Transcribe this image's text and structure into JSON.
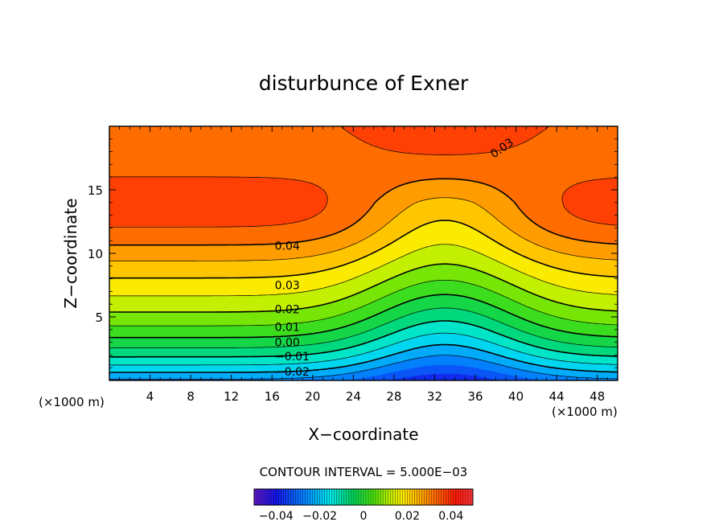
{
  "chart_data": {
    "type": "contour",
    "title": "disturbunce of Exner",
    "xlabel": "X−coordinate",
    "ylabel": "Z−coordinate",
    "x_unit": "(×1000 m)",
    "x_unit_right": "(×1000 m)",
    "xlim": [
      0,
      50
    ],
    "ylim": [
      0,
      20
    ],
    "x_ticks": [
      4,
      8,
      12,
      16,
      20,
      24,
      28,
      32,
      36,
      40,
      44,
      48
    ],
    "y_ticks": [
      5,
      10,
      15
    ],
    "contour_interval_label": "CONTOUR INTERVAL = 5.000E−03",
    "contour_interval": 0.005,
    "contour_labels": [
      {
        "text": "0.04",
        "x": 17.5,
        "y": 10.6
      },
      {
        "text": "0.03",
        "x": 17.5,
        "y": 7.5
      },
      {
        "text": "0.02",
        "x": 17.5,
        "y": 5.6
      },
      {
        "text": "0.01",
        "x": 17.5,
        "y": 4.2
      },
      {
        "text": "0.00",
        "x": 17.5,
        "y": 3.0
      },
      {
        "text": "−0.01",
        "x": 18.0,
        "y": 1.9
      },
      {
        "text": "−0.02",
        "x": 18.0,
        "y": 0.7
      },
      {
        "text": "0.03",
        "x": 38.6,
        "y": 18.3
      }
    ],
    "colorbar": {
      "range": [
        -0.05,
        0.05
      ],
      "ticks": [
        -0.04,
        -0.02,
        0,
        0.02,
        0.04
      ],
      "tick_labels": [
        "−0.04",
        "−0.02",
        "0",
        "0.02",
        "0.04"
      ]
    }
  }
}
